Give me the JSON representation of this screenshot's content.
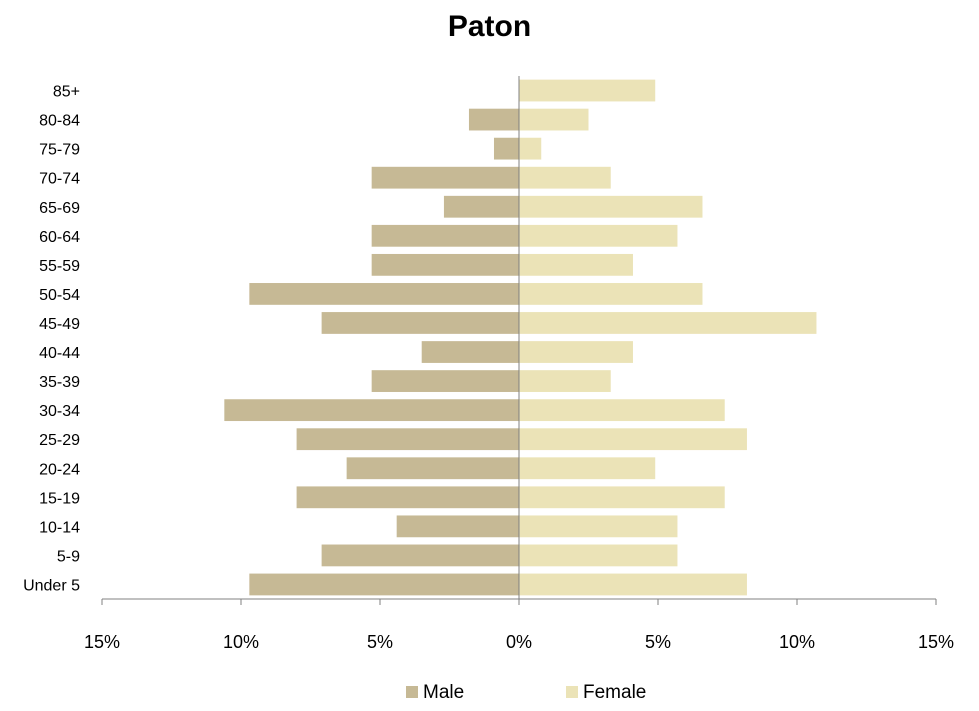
{
  "chart_data": {
    "type": "bar",
    "orientation": "horizontal",
    "title": "Paton",
    "categories": [
      "85+",
      "80-84",
      "75-79",
      "70-74",
      "65-69",
      "60-64",
      "55-59",
      "50-54",
      "45-49",
      "40-44",
      "35-39",
      "30-34",
      "25-29",
      "20-24",
      "15-19",
      "10-14",
      "5-9",
      "Under 5"
    ],
    "series": [
      {
        "name": "Male",
        "color": "#c6b995",
        "direction": "left",
        "values": [
          0,
          1.8,
          0.9,
          5.3,
          2.7,
          5.3,
          5.3,
          9.7,
          7.1,
          3.5,
          5.3,
          10.6,
          8.0,
          6.2,
          8.0,
          4.4,
          7.1,
          9.7
        ]
      },
      {
        "name": "Female",
        "color": "#ebe3b7",
        "direction": "right",
        "values": [
          4.9,
          2.5,
          0.8,
          3.3,
          6.6,
          5.7,
          4.1,
          6.6,
          10.7,
          4.1,
          3.3,
          7.4,
          8.2,
          4.9,
          7.4,
          5.7,
          5.7,
          8.2
        ]
      }
    ],
    "xlim": [
      -15,
      15
    ],
    "xticks": [
      -15,
      -10,
      -5,
      0,
      5,
      10,
      15
    ],
    "xtick_labels": [
      "15%",
      "10%",
      "5%",
      "0%",
      "5%",
      "10%",
      "15%"
    ],
    "unit": "%",
    "grid": false,
    "legend_position": "bottom"
  }
}
